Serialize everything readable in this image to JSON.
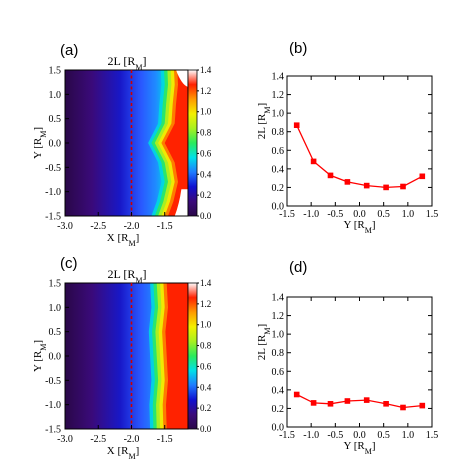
{
  "colors": {
    "series": "#ff0000",
    "axis": "#000000",
    "divider": "#cc0000"
  },
  "colormap": [
    "#2a0848",
    "#3a0a7a",
    "#1010d0",
    "#1f7bff",
    "#00e0e8",
    "#2aeb5c",
    "#a8f020",
    "#f4f000",
    "#ff9a00",
    "#ff2000",
    "#ffffff"
  ],
  "chart_data": [
    {
      "id": "a",
      "panel_label": "(a)",
      "type": "heatmap",
      "title": "2L [R",
      "title_sub": "M",
      "title_end": "]",
      "xlabel": "X [R",
      "xlabel_sub": "M",
      "xlabel_end": "]",
      "ylabel": "Y [R",
      "ylabel_sub": "M",
      "ylabel_end": "]",
      "xlim": [
        -3.0,
        -1.15
      ],
      "ylim": [
        -1.5,
        1.5
      ],
      "xticks": [
        "-3.0",
        "-2.5",
        "-2.0",
        "-1.5"
      ],
      "xtick_values": [
        -3.0,
        -2.5,
        -2.0,
        -1.5
      ],
      "yticks": [
        "-1.5",
        "-1.0",
        "-0.5",
        "0.0",
        "0.5",
        "1.0",
        "1.5"
      ],
      "ytick_values": [
        -1.5,
        -1.0,
        -0.5,
        0.0,
        0.5,
        1.0,
        1.5
      ],
      "colorbar_range": [
        0.0,
        1.4
      ],
      "colorbar_ticks": [
        "0.0",
        "0.2",
        "0.4",
        "0.6",
        "0.8",
        "1.0",
        "1.2",
        "1.4"
      ],
      "colorbar_values": [
        0.0,
        0.2,
        0.4,
        0.6,
        0.8,
        1.0,
        1.2,
        1.4
      ],
      "dashed_line_x": -2.0,
      "boundary": {
        "y": [
          1.5,
          1.2,
          0.8,
          0.4,
          0.0,
          -0.4,
          -0.8,
          -1.2,
          -1.5
        ],
        "x": [
          -1.56,
          -1.55,
          -1.58,
          -1.6,
          -1.75,
          -1.6,
          -1.55,
          -1.62,
          -1.7
        ]
      }
    },
    {
      "id": "b",
      "panel_label": "(b)",
      "type": "line",
      "xlabel": "Y [R",
      "xlabel_sub": "M",
      "xlabel_end": "]",
      "ylabel": "2L [R",
      "ylabel_sub": "M",
      "ylabel_end": "]",
      "xlim": [
        -1.5,
        1.5
      ],
      "ylim": [
        0.0,
        1.4
      ],
      "xticks": [
        "-1.5",
        "-1.0",
        "-0.5",
        "0.0",
        "0.5",
        "1.0",
        "1.5"
      ],
      "xtick_values": [
        -1.5,
        -1.0,
        -0.5,
        0.0,
        0.5,
        1.0,
        1.5
      ],
      "yticks": [
        "0.0",
        "0.2",
        "0.4",
        "0.6",
        "0.8",
        "1.0",
        "1.2",
        "1.4"
      ],
      "ytick_values": [
        0.0,
        0.2,
        0.4,
        0.6,
        0.8,
        1.0,
        1.2,
        1.4
      ],
      "x": [
        -1.3,
        -0.95,
        -0.6,
        -0.25,
        0.15,
        0.55,
        0.9,
        1.3
      ],
      "y": [
        0.87,
        0.48,
        0.33,
        0.26,
        0.22,
        0.2,
        0.21,
        0.32
      ]
    },
    {
      "id": "c",
      "panel_label": "(c)",
      "type": "heatmap",
      "title": "2L [R",
      "title_sub": "M",
      "title_end": "]",
      "xlabel": "X [R",
      "xlabel_sub": "M",
      "xlabel_end": "]",
      "ylabel": "Y [R",
      "ylabel_sub": "M",
      "ylabel_end": "]",
      "xlim": [
        -3.0,
        -1.15
      ],
      "ylim": [
        -1.5,
        1.5
      ],
      "xticks": [
        "-3.0",
        "-2.5",
        "-2.0",
        "-1.5"
      ],
      "xtick_values": [
        -3.0,
        -2.5,
        -2.0,
        -1.5
      ],
      "yticks": [
        "-1.5",
        "-1.0",
        "-0.5",
        "0.0",
        "0.5",
        "1.0",
        "1.5"
      ],
      "ytick_values": [
        -1.5,
        -1.0,
        -0.5,
        0.0,
        0.5,
        1.0,
        1.5
      ],
      "colorbar_range": [
        0.0,
        1.4
      ],
      "colorbar_ticks": [
        "0.0",
        "0.2",
        "0.4",
        "0.6",
        "0.8",
        "1.0",
        "1.2",
        "1.4"
      ],
      "colorbar_values": [
        0.0,
        0.2,
        0.4,
        0.6,
        0.8,
        1.0,
        1.2,
        1.4
      ],
      "dashed_line_x": -2.0,
      "boundary": {
        "y": [
          1.5,
          1.0,
          0.5,
          0.0,
          -0.5,
          -1.0,
          -1.5
        ],
        "x": [
          -1.72,
          -1.7,
          -1.74,
          -1.72,
          -1.7,
          -1.73,
          -1.72
        ]
      }
    },
    {
      "id": "d",
      "panel_label": "(d)",
      "type": "line",
      "xlabel": "Y [R",
      "xlabel_sub": "M",
      "xlabel_end": "]",
      "ylabel": "2L [R",
      "ylabel_sub": "M",
      "ylabel_end": "]",
      "xlim": [
        -1.5,
        1.5
      ],
      "ylim": [
        0.0,
        1.4
      ],
      "xticks": [
        "-1.5",
        "-1.0",
        "-0.5",
        "0.0",
        "0.5",
        "1.0",
        "1.5"
      ],
      "xtick_values": [
        -1.5,
        -1.0,
        -0.5,
        0.0,
        0.5,
        1.0,
        1.5
      ],
      "yticks": [
        "0.0",
        "0.2",
        "0.4",
        "0.6",
        "0.8",
        "1.0",
        "1.2",
        "1.4"
      ],
      "ytick_values": [
        0.0,
        0.2,
        0.4,
        0.6,
        0.8,
        1.0,
        1.2,
        1.4
      ],
      "x": [
        -1.3,
        -0.95,
        -0.6,
        -0.25,
        0.15,
        0.55,
        0.9,
        1.3
      ],
      "y": [
        0.35,
        0.26,
        0.25,
        0.28,
        0.29,
        0.25,
        0.21,
        0.23
      ]
    }
  ]
}
